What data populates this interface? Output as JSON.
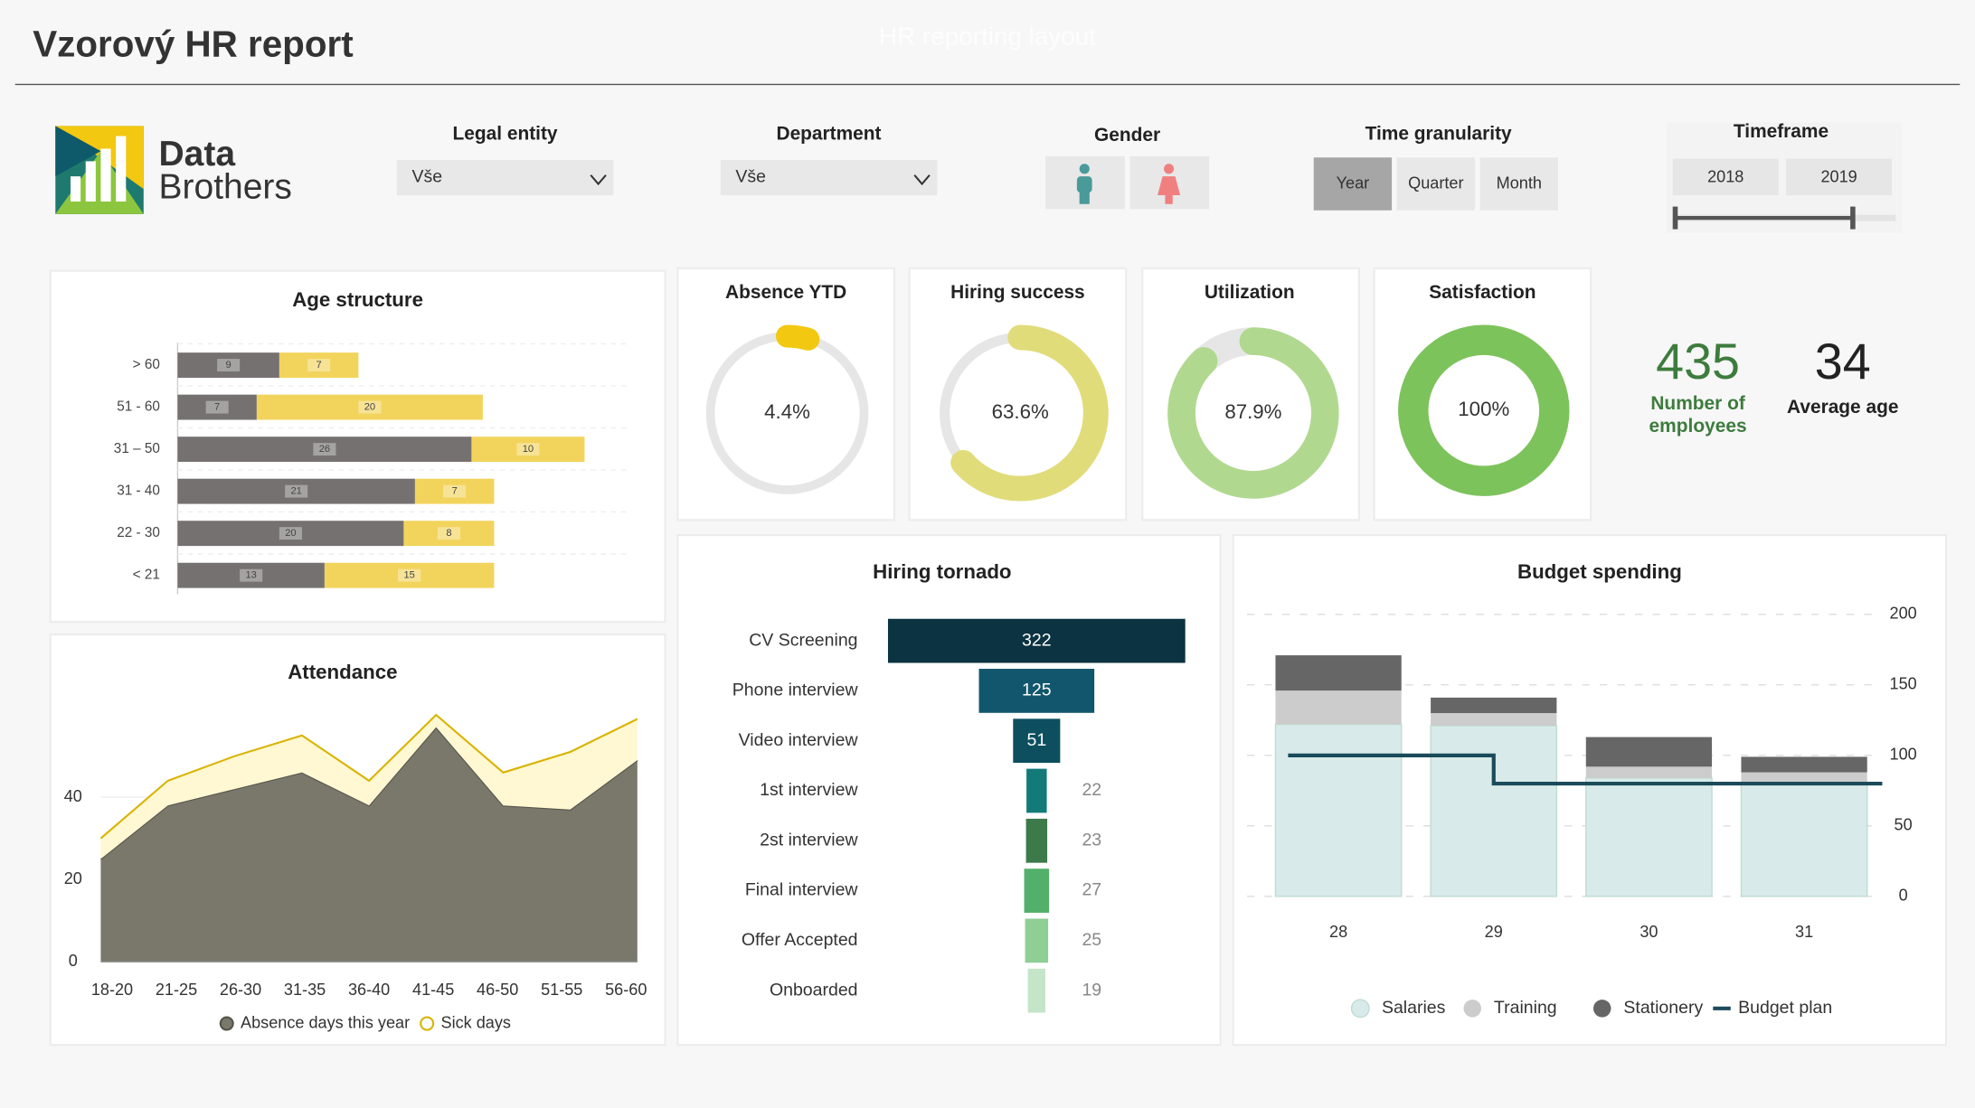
{
  "header": {
    "title": "Vzorový HR report",
    "subtitle": "HR reporting layout"
  },
  "logo": {
    "line1": "Data",
    "line2": "Brothers"
  },
  "filters": {
    "legal_entity": {
      "label": "Legal entity",
      "value": "Vše"
    },
    "department": {
      "label": "Department",
      "value": "Vše"
    },
    "gender": {
      "label": "Gender"
    },
    "time_granularity": {
      "label": "Time granularity",
      "options": [
        "Year",
        "Quarter",
        "Month"
      ],
      "selected": "Year"
    },
    "timeframe": {
      "label": "Timeframe",
      "options": [
        "2018",
        "2019"
      ]
    }
  },
  "kpis": [
    {
      "value": 435,
      "label": "Number of employees",
      "color": "#3d7c3d"
    },
    {
      "value": 34,
      "label": "Average age",
      "color": "#222222"
    }
  ],
  "chart_data": [
    {
      "type": "hbar_stacked",
      "title": "Age structure",
      "categories": [
        "> 60",
        "51 - 60",
        "31 – 50",
        "31 - 40",
        "22 - 30",
        "< 21"
      ],
      "series": [
        {
          "color": "#767171",
          "values": [
            9,
            7,
            26,
            21,
            20,
            13
          ]
        },
        {
          "color": "#f2d45c",
          "values": [
            7,
            20,
            10,
            7,
            8,
            15
          ]
        }
      ],
      "xlim": [
        0,
        40
      ]
    },
    {
      "type": "area_stacked",
      "title": "Attendance",
      "categories": [
        "18-20",
        "21-25",
        "26-30",
        "31-35",
        "36-40",
        "41-45",
        "46-50",
        "51-55",
        "56-60"
      ],
      "series": [
        {
          "name": "Absence days this year",
          "color": "#7a776b",
          "line_color": "#55534a",
          "values": [
            25,
            38,
            42,
            46,
            38,
            57,
            38,
            37,
            49
          ]
        },
        {
          "name": "Sick days",
          "color": "#fff8d2",
          "line_color": "#d9b300",
          "values": [
            5,
            6,
            8,
            9,
            6,
            3,
            8,
            14,
            10
          ]
        }
      ],
      "ylim": [
        0,
        60
      ],
      "yticks": [
        0,
        20,
        40
      ]
    },
    {
      "type": "funnel",
      "title": "Hiring tornado",
      "categories": [
        "CV Screening",
        "Phone interview",
        "Video interview",
        "1st interview",
        "2st interview",
        "Final interview",
        "Offer Accepted",
        "Onboarded"
      ],
      "values": [
        322,
        125,
        51,
        22,
        23,
        27,
        25,
        19
      ],
      "colors": [
        "#0b3341",
        "#11566c",
        "#0d4f5f",
        "#127b78",
        "#3d7a4a",
        "#52b06a",
        "#8fce95",
        "#c5e5c8"
      ],
      "xlim": [
        0,
        322
      ]
    },
    {
      "type": "bar_stacked_line",
      "title": "Budget spending",
      "categories": [
        "28",
        "29",
        "30",
        "31"
      ],
      "series": [
        {
          "name": "Salaries",
          "color": "#d8ebea",
          "values": [
            122,
            121,
            84,
            80
          ]
        },
        {
          "name": "Training",
          "color": "#cccccc",
          "values": [
            24,
            9,
            8,
            8
          ]
        },
        {
          "name": "Stationery",
          "color": "#666666",
          "values": [
            25,
            11,
            21,
            11
          ]
        },
        {
          "name": "Budget plan",
          "color": "#1b4b5a",
          "type": "line",
          "step": "post",
          "values": [
            100,
            80,
            80,
            80
          ]
        }
      ],
      "ylim": [
        0,
        200
      ],
      "yticks": [
        0,
        50,
        100,
        150,
        200
      ],
      "grid": true
    },
    {
      "type": "gauge",
      "title": "Absence YTD",
      "value": 4.4,
      "value_label": "4.4%",
      "color": "#f2c811",
      "ylim": [
        0,
        100
      ]
    },
    {
      "type": "gauge",
      "title": "Hiring success",
      "value": 63.6,
      "value_label": "63.6%",
      "color": "#e0dc7a",
      "ylim": [
        0,
        100
      ]
    },
    {
      "type": "gauge",
      "title": "Utilization",
      "value": 87.9,
      "value_label": "87.9%",
      "color": "#b0d98f",
      "ylim": [
        0,
        100
      ]
    },
    {
      "type": "gauge",
      "title": "Satisfaction",
      "value": 100,
      "value_label": "100%",
      "color": "#7dc35b",
      "ylim": [
        0,
        100
      ]
    }
  ]
}
